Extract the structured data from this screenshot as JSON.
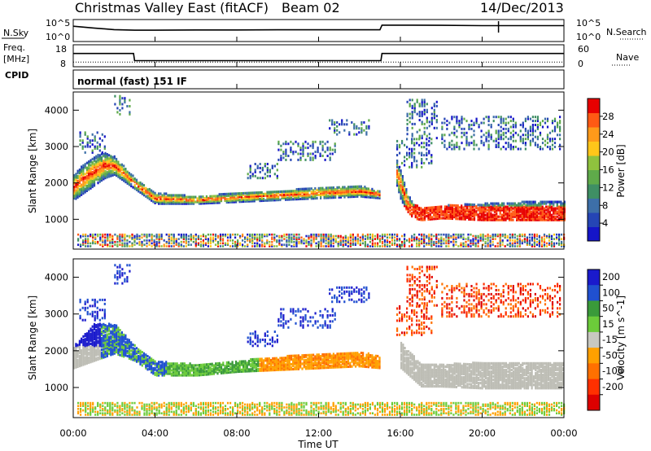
{
  "header": {
    "site": "Christmas Valley East (fitACF)",
    "beam": "Beam 02",
    "date": "14/Dec/2013"
  },
  "left_labels": {
    "nsky": "N.Sky",
    "freq_line1": "Freq.",
    "freq_line2": "[MHz]",
    "cpid": "CPID"
  },
  "right_labels": {
    "nsearch": "N.Search",
    "nave": "Nave"
  },
  "cpid_text": "normal (fast) 151 IF",
  "colors": {
    "power_scale": [
      "#1515c8",
      "#2545b5",
      "#3d6fa8",
      "#3f8f64",
      "#5faa4a",
      "#8fc23e",
      "#ffc61a",
      "#ff9a1a",
      "#ff5a14",
      "#e80000"
    ],
    "velocity_scale": [
      "#1a1acc",
      "#2050d0",
      "#3a9a3a",
      "#6ccb3a",
      "#c8c8c0",
      "#ffa000",
      "#ff7000",
      "#ff3000",
      "#dd0000"
    ],
    "ground_scatter": "#bdbdb5"
  },
  "chart_data": [
    {
      "type": "line",
      "title": "",
      "ylabel": "N.Sky",
      "ytick_labels": [
        "10^5",
        "10^0"
      ],
      "right_ylabel": "N.Search",
      "right_ytick_labels": [
        "10^5",
        "10^0"
      ],
      "x": [
        0,
        1,
        2,
        3,
        4,
        6,
        8,
        10,
        12,
        14,
        15,
        15.1,
        16,
        18,
        20,
        22,
        24
      ],
      "series": [
        {
          "name": "N.Sky",
          "values": [
            10000,
            3000,
            1000,
            700,
            700,
            800,
            800,
            900,
            900,
            900,
            900,
            20000,
            20000,
            18000,
            15000,
            15000,
            15000
          ]
        }
      ]
    },
    {
      "type": "line",
      "ylabel": "Freq. [MHz]",
      "ytick_labels": [
        "18",
        "8"
      ],
      "right_ylabel": "Nave",
      "right_ytick_labels": [
        "60",
        "0"
      ],
      "x": [
        0,
        2.95,
        3.0,
        15.05,
        15.1,
        24
      ],
      "series": [
        {
          "name": "Freq.",
          "values": [
            14.5,
            14.5,
            10.5,
            10.5,
            14.5,
            14.5
          ]
        },
        {
          "name": "Nave",
          "values": [
            10,
            10,
            10,
            10,
            10,
            10
          ]
        }
      ]
    },
    {
      "type": "heatmap",
      "xlabel": "",
      "ylabel": "Slant Range [km]",
      "xlim": [
        0,
        24
      ],
      "ylim": [
        180,
        4500
      ],
      "yticks": [
        1000,
        2000,
        3000,
        4000
      ],
      "colorbar_label": "Power [dB]",
      "colorbar_ticks": [
        4,
        8,
        12,
        16,
        20,
        24,
        28
      ],
      "colorbar_range": [
        0,
        32
      ],
      "bands": [
        {
          "t": [
            0.0,
            0.5,
            1.0,
            1.5,
            2.0,
            2.5,
            3.0,
            4.0,
            6.0,
            8.0,
            10.0,
            12.0,
            14.0,
            15.0
          ],
          "range_lo": [
            1500,
            1700,
            1900,
            2100,
            2200,
            2000,
            1800,
            1400,
            1400,
            1450,
            1500,
            1550,
            1600,
            1550
          ],
          "range_hi": [
            2200,
            2500,
            2700,
            2800,
            2700,
            2400,
            2100,
            1700,
            1600,
            1700,
            1750,
            1850,
            1900,
            1750
          ],
          "power": 24
        },
        {
          "t": [
            15.8,
            16.0,
            16.3,
            16.6,
            17.0,
            18.0,
            20.0,
            22.0,
            24.0
          ],
          "range_lo": [
            1900,
            1500,
            1200,
            1000,
            950,
            1000,
            950,
            950,
            950
          ],
          "range_hi": [
            2600,
            2300,
            1700,
            1400,
            1300,
            1350,
            1400,
            1450,
            1450
          ],
          "power": 27
        }
      ]
    },
    {
      "type": "heatmap",
      "xlabel": "Time UT",
      "ylabel": "Slant Range [km]",
      "xlim": [
        0,
        24
      ],
      "ylim": [
        180,
        4500
      ],
      "yticks": [
        1000,
        2000,
        3000,
        4000
      ],
      "xticks": [
        "00:00",
        "04:00",
        "08:00",
        "12:00",
        "16:00",
        "20:00",
        "00:00"
      ],
      "colorbar_label": "Velocity [m s^-1]",
      "colorbar_ticks": [
        200,
        100,
        50,
        15,
        -15,
        -50,
        -100,
        -200
      ],
      "bands": [
        {
          "t": [
            0.0,
            1.0,
            2.0,
            3.0,
            4.0,
            6.0,
            8.0,
            10.0,
            12.0,
            14.0,
            15.0
          ],
          "range_lo": [
            1500,
            1700,
            1900,
            1700,
            1300,
            1300,
            1400,
            1450,
            1500,
            1550,
            1500
          ],
          "range_hi": [
            2100,
            2700,
            2700,
            2100,
            1700,
            1600,
            1700,
            1800,
            1900,
            1950,
            1800
          ],
          "velocity": "mixed"
        },
        {
          "t": [
            16.0,
            17.0,
            18.0,
            20.0,
            22.0,
            24.0
          ],
          "range_lo": [
            1500,
            1000,
            1000,
            950,
            950,
            950
          ],
          "range_hi": [
            2200,
            1600,
            1600,
            1650,
            1650,
            1650
          ],
          "velocity": "ground scatter"
        }
      ]
    }
  ]
}
